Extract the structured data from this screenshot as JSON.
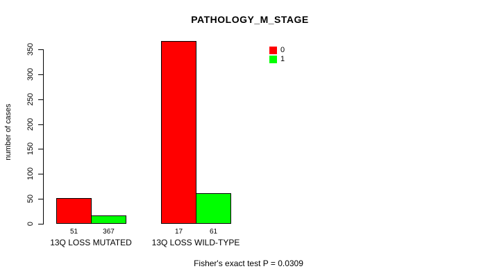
{
  "title": "PATHOLOGY_M_STAGE",
  "footer": {
    "text": "Fisher's exact test P = 0.0309"
  },
  "chart_data": {
    "type": "bar",
    "title": "PATHOLOGY_M_STAGE",
    "categories": [
      "13Q LOSS MUTATED",
      "13Q LOSS WILD-TYPE"
    ],
    "series": [
      {
        "name": "0",
        "color": "#ff0000",
        "values": [
          51,
          367
        ]
      },
      {
        "name": "1",
        "color": "#00ff00",
        "values": [
          17,
          61
        ]
      }
    ],
    "xlabel": "",
    "ylabel": "number of cases",
    "ylim": [
      0,
      350
    ],
    "yticks": [
      0,
      50,
      100,
      150,
      200,
      250,
      300,
      350
    ],
    "grid": false,
    "bar_value_labels_shown": true,
    "bar_value_labels": [
      [
        "51",
        "17"
      ],
      [
        "367",
        "61"
      ]
    ],
    "legend_position": "top-right",
    "legend_entries": [
      "0",
      "1"
    ],
    "annotation": "Fisher's exact test P = 0.0309",
    "bar_border_color": "#000000",
    "axis_color": "#000000",
    "background_color": "#ffffff"
  }
}
